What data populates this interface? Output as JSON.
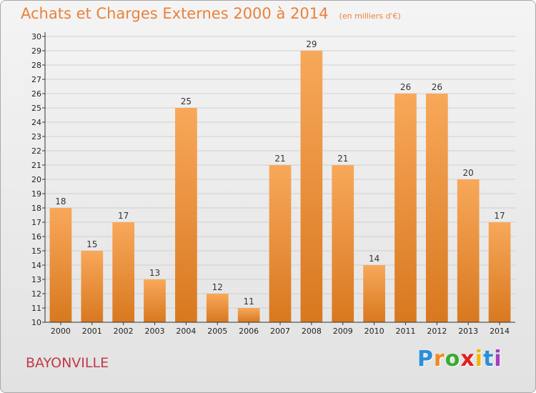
{
  "header": {
    "title": "Achats et Charges Externes 2000 à 2014",
    "subtitle": "(en milliers d'€)"
  },
  "footer": {
    "commune": "BAYONVILLE",
    "logo": {
      "letters": [
        "P",
        "r",
        "o",
        "x",
        "i",
        "t",
        "i"
      ],
      "colors": [
        "#2a8fd8",
        "#f08a1c",
        "#3aaa35",
        "#e02020",
        "#f0b800",
        "#2a8fd8",
        "#a040c0"
      ]
    }
  },
  "colors": {
    "bar_top": "#f8a85a",
    "bar_bottom": "#d8781f",
    "grid": "#d0d0d0",
    "axis": "#333333"
  },
  "chart_data": {
    "type": "bar",
    "categories": [
      "2000",
      "2001",
      "2002",
      "2003",
      "2004",
      "2005",
      "2006",
      "2007",
      "2008",
      "2009",
      "2010",
      "2011",
      "2012",
      "2013",
      "2014"
    ],
    "values": [
      18,
      15,
      17,
      13,
      25,
      12,
      11,
      21,
      29,
      21,
      14,
      26,
      26,
      20,
      17
    ],
    "value_labels": [
      "18",
      "15",
      "17",
      "13",
      "25",
      "12",
      "11",
      "21",
      "29",
      "21",
      "14",
      "26",
      "26",
      "20",
      "17"
    ],
    "y_ticks": [
      "10",
      "11",
      "12",
      "13",
      "14",
      "15",
      "16",
      "17",
      "18",
      "19",
      "20",
      "21",
      "22",
      "23",
      "24",
      "25",
      "26",
      "27",
      "28",
      "29",
      "30"
    ],
    "ylim": [
      10,
      30
    ],
    "grid": true,
    "legend": "none"
  }
}
